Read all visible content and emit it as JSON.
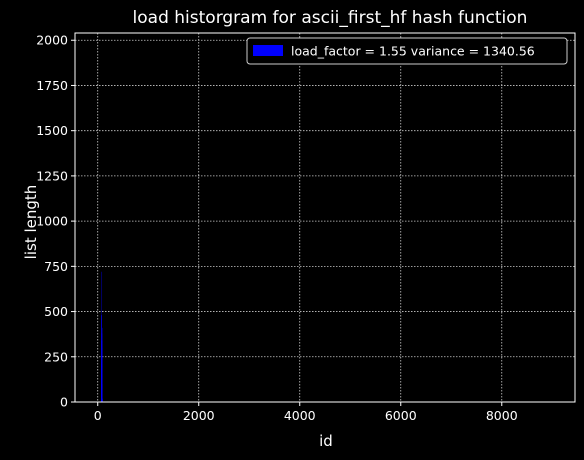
{
  "chart_data": {
    "type": "bar",
    "title": "load historgram for ascii_first_hf hash function",
    "xlabel": "id",
    "ylabel": "list length",
    "xlim": [
      -450,
      9450
    ],
    "ylim": [
      0,
      2040
    ],
    "xticks": [
      0,
      2000,
      4000,
      6000,
      8000
    ],
    "yticks": [
      0,
      250,
      500,
      750,
      1000,
      1250,
      1500,
      1750,
      2000
    ],
    "grid": true,
    "grid_style": "dotted",
    "background": "#000000",
    "foreground": "#ffffff",
    "bar_color": "#0000ff",
    "legend_position": "top-right",
    "series": [
      {
        "name": "load_factor = 1.55 variance = 1340.56",
        "color": "#0000ff"
      }
    ],
    "bars": [
      {
        "x": 65,
        "value": 30
      },
      {
        "x": 66,
        "value": 120
      },
      {
        "x": 67,
        "value": 480
      },
      {
        "x": 68,
        "value": 210
      },
      {
        "x": 69,
        "value": 340
      },
      {
        "x": 70,
        "value": 250
      },
      {
        "x": 71,
        "value": 180
      },
      {
        "x": 72,
        "value": 220
      },
      {
        "x": 73,
        "value": 110
      },
      {
        "x": 74,
        "value": 90
      },
      {
        "x": 75,
        "value": 60
      },
      {
        "x": 76,
        "value": 150
      },
      {
        "x": 77,
        "value": 720
      },
      {
        "x": 78,
        "value": 120
      },
      {
        "x": 79,
        "value": 60
      },
      {
        "x": 80,
        "value": 380
      },
      {
        "x": 81,
        "value": 20
      },
      {
        "x": 82,
        "value": 340
      },
      {
        "x": 83,
        "value": 410
      },
      {
        "x": 84,
        "value": 300
      },
      {
        "x": 85,
        "value": 90
      },
      {
        "x": 86,
        "value": 70
      },
      {
        "x": 87,
        "value": 100
      },
      {
        "x": 88,
        "value": 10
      },
      {
        "x": 89,
        "value": 20
      },
      {
        "x": 90,
        "value": 15
      }
    ]
  }
}
